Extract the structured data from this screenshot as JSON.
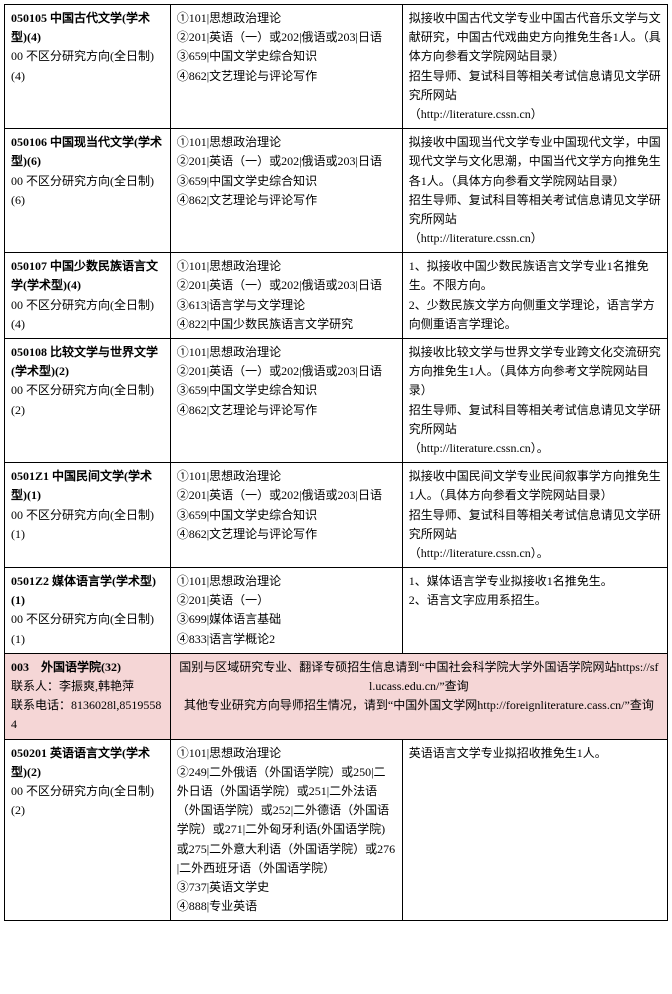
{
  "rows": [
    {
      "c1": "<b>050105 中国古代文学(学术型)(4)</b><br>00 不区分研究方向(全日制)(4)",
      "c2": "①101|思想政治理论<br>②201|英语（一）或202|俄语或203|日语<br>③659|中国文学史综合知识<br>④862|文艺理论与评论写作",
      "c3": "拟接收中国古代文学专业中国古代音乐文学与文献研究，中国古代戏曲史方向推免生各1人。（具体方向参看文学院网站目录）<br>招生导师、复试科目等相关考试信息请见文学研究所网站<br>（http://literature.cssn.cn）"
    },
    {
      "c1": "<b>050106 中国现当代文学(学术型)(6)</b><br>00 不区分研究方向(全日制)(6)",
      "c2": "①101|思想政治理论<br>②201|英语（一）或202|俄语或203|日语<br>③659|中国文学史综合知识<br>④862|文艺理论与评论写作",
      "c3": "拟接收中国现当代文学专业中国现代文学，中国现代文学与文化思潮，中国当代文学方向推免生各1人。（具体方向参看文学院网站目录）<br>招生导师、复试科目等相关考试信息请见文学研究所网站<br>（http://literature.cssn.cn）"
    },
    {
      "c1": "<b>050107 中国少数民族语言文学(学术型)(4)</b><br>00 不区分研究方向(全日制)(4)",
      "c2": "①101|思想政治理论<br>②201|英语（一）或202|俄语或203|日语<br>③613|语言学与文学理论<br>④822|中国少数民族语言文学研究",
      "c3": "1、拟接收中国少数民族语言文学专业1名推免生。不限方向。<br>2、少数民族文学方向侧重文学理论，语言学方向侧重语言学理论。"
    },
    {
      "c1": "<b>050108 比较文学与世界文学(学术型)(2)</b><br>00 不区分研究方向(全日制)(2)",
      "c2": "①101|思想政治理论<br>②201|英语（一）或202|俄语或203|日语<br>③659|中国文学史综合知识<br>④862|文艺理论与评论写作",
      "c3": "拟接收比较文学与世界文学专业跨文化交流研究方向推免生1人。（具体方向参考文学院网站目录）<br>招生导师、复试科目等相关考试信息请见文学研究所网站<br>（http://literature.cssn.cn）。"
    },
    {
      "c1": "<b>0501Z1 中国民间文学(学术型)(1)</b><br>00 不区分研究方向(全日制)(1)",
      "c2": "①101|思想政治理论<br>②201|英语（一）或202|俄语或203|日语<br>③659|中国文学史综合知识<br>④862|文艺理论与评论写作",
      "c3": "拟接收中国民间文学专业民间叙事学方向推免生1人。（具体方向参看文学院网站目录）<br>招生导师、复试科目等相关考试信息请见文学研究所网站<br>（http://literature.cssn.cn）。"
    },
    {
      "c1": "<b>0501Z2 媒体语言学(学术型)(1)</b><br>00 不区分研究方向(全日制)(1)",
      "c2": "①101|思想政治理论<br>②201|英语（一）<br>③699|媒体语言基础<br>④833|语言学概论2",
      "c3": "1、媒体语言学专业拟接收1名推免生。<br>2、语言文字应用系招生。"
    },
    {
      "pink": true,
      "c1": "<b>003　外国语学院(32)</b><br>联系人：李振爽,韩艳萍<br>联系电话：8136028l,85195584",
      "merged": "国别与区域研究专业、翻译专硕招生信息请到“中国社会科学院大学外国语学院网站https://sfl.ucass.edu.cn/”查询<br>其他专业研究方向导师招生情况，请到“中国外国文学网http://foreignliterature.cass.cn/”查询"
    },
    {
      "c1": "<b>050201 英语语言文学(学术型)(2)</b><br>00 不区分研究方向(全日制)(2)",
      "c2": "①101|思想政治理论<br>②249|二外俄语（外国语学院）或250|二外日语（外国语学院）或251|二外法语（外国语学院）或252|二外德语（外国语学院）或271|二外匈牙利语(外国语学院)或275|二外意大利语（外国语学院）或276|二外西班牙语（外国语学院）<br>③737|英语文学史<br>④888|专业英语",
      "c3": "英语语言文学专业拟招收推免生1人。"
    }
  ]
}
